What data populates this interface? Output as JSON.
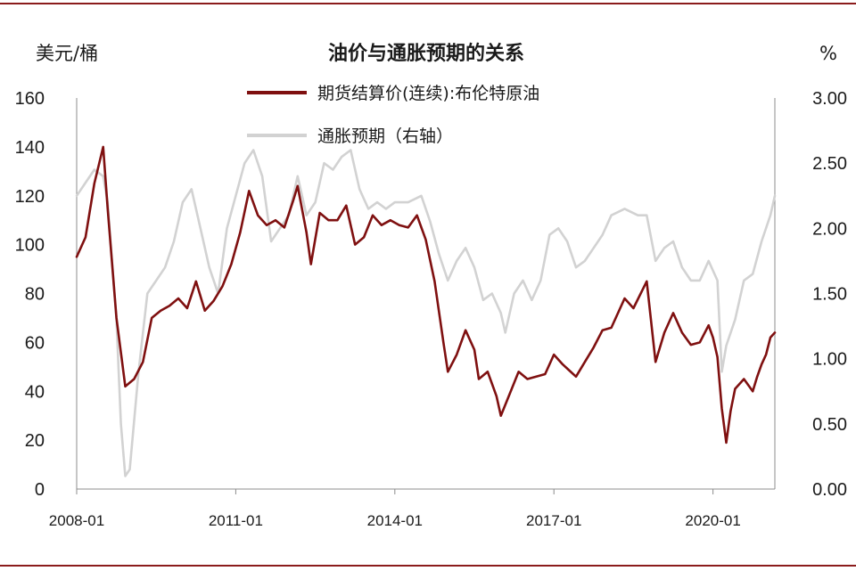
{
  "chart_data": {
    "type": "line",
    "title": "油价与通胀预期的关系",
    "ylabel_left": "美元/桶",
    "ylabel_right": "%",
    "y_left": {
      "min": 0,
      "max": 160,
      "ticks": [
        "0",
        "20",
        "40",
        "60",
        "80",
        "100",
        "120",
        "140",
        "160"
      ]
    },
    "y_right": {
      "min": 0,
      "max": 3,
      "ticks": [
        "0.00",
        "0.50",
        "1.00",
        "1.50",
        "2.00",
        "2.50",
        "3.00"
      ]
    },
    "x_ticks": [
      "2008-01",
      "2011-01",
      "2014-01",
      "2017-01",
      "2020-01"
    ],
    "x_range": [
      "2008-01",
      "2021-03"
    ],
    "legend_position": "top-center",
    "series": [
      {
        "name": "期货结算价(连续):布伦特原油",
        "axis": "left",
        "color": "#7f1010",
        "points": [
          [
            "2008-01",
            95
          ],
          [
            "2008-03",
            103
          ],
          [
            "2008-05",
            125
          ],
          [
            "2008-07",
            140
          ],
          [
            "2008-08",
            115
          ],
          [
            "2008-10",
            70
          ],
          [
            "2008-12",
            42
          ],
          [
            "2009-02",
            45
          ],
          [
            "2009-04",
            52
          ],
          [
            "2009-06",
            70
          ],
          [
            "2009-08",
            73
          ],
          [
            "2009-10",
            75
          ],
          [
            "2009-12",
            78
          ],
          [
            "2010-02",
            74
          ],
          [
            "2010-04",
            85
          ],
          [
            "2010-06",
            73
          ],
          [
            "2010-08",
            77
          ],
          [
            "2010-10",
            83
          ],
          [
            "2010-12",
            92
          ],
          [
            "2011-02",
            105
          ],
          [
            "2011-04",
            122
          ],
          [
            "2011-06",
            112
          ],
          [
            "2011-08",
            108
          ],
          [
            "2011-10",
            110
          ],
          [
            "2011-12",
            107
          ],
          [
            "2012-02",
            118
          ],
          [
            "2012-03",
            124
          ],
          [
            "2012-05",
            105
          ],
          [
            "2012-06",
            92
          ],
          [
            "2012-08",
            113
          ],
          [
            "2012-10",
            110
          ],
          [
            "2012-12",
            110
          ],
          [
            "2013-02",
            116
          ],
          [
            "2013-04",
            100
          ],
          [
            "2013-06",
            103
          ],
          [
            "2013-08",
            112
          ],
          [
            "2013-10",
            108
          ],
          [
            "2013-12",
            110
          ],
          [
            "2014-02",
            108
          ],
          [
            "2014-04",
            107
          ],
          [
            "2014-06",
            112
          ],
          [
            "2014-08",
            102
          ],
          [
            "2014-10",
            85
          ],
          [
            "2014-12",
            60
          ],
          [
            "2015-01",
            48
          ],
          [
            "2015-03",
            55
          ],
          [
            "2015-05",
            65
          ],
          [
            "2015-07",
            57
          ],
          [
            "2015-08",
            45
          ],
          [
            "2015-10",
            48
          ],
          [
            "2015-12",
            38
          ],
          [
            "2016-01",
            30
          ],
          [
            "2016-03",
            39
          ],
          [
            "2016-05",
            48
          ],
          [
            "2016-07",
            45
          ],
          [
            "2016-09",
            46
          ],
          [
            "2016-11",
            47
          ],
          [
            "2017-01",
            55
          ],
          [
            "2017-03",
            51
          ],
          [
            "2017-06",
            46
          ],
          [
            "2017-08",
            52
          ],
          [
            "2017-10",
            58
          ],
          [
            "2017-12",
            65
          ],
          [
            "2018-02",
            66
          ],
          [
            "2018-05",
            78
          ],
          [
            "2018-07",
            74
          ],
          [
            "2018-10",
            85
          ],
          [
            "2018-12",
            52
          ],
          [
            "2019-02",
            64
          ],
          [
            "2019-04",
            72
          ],
          [
            "2019-06",
            64
          ],
          [
            "2019-08",
            59
          ],
          [
            "2019-10",
            60
          ],
          [
            "2019-12",
            67
          ],
          [
            "2020-01",
            62
          ],
          [
            "2020-02",
            54
          ],
          [
            "2020-03",
            33
          ],
          [
            "2020-04",
            19
          ],
          [
            "2020-05",
            32
          ],
          [
            "2020-06",
            41
          ],
          [
            "2020-08",
            45
          ],
          [
            "2020-10",
            40
          ],
          [
            "2020-11",
            46
          ],
          [
            "2020-12",
            51
          ],
          [
            "2021-01",
            55
          ],
          [
            "2021-02",
            62
          ],
          [
            "2021-03",
            64
          ]
        ]
      },
      {
        "name": "通胀预期（右轴）",
        "axis": "right",
        "color": "#d2d2d2",
        "points": [
          [
            "2008-01",
            2.25
          ],
          [
            "2008-03",
            2.35
          ],
          [
            "2008-05",
            2.45
          ],
          [
            "2008-07",
            2.4
          ],
          [
            "2008-08",
            2.2
          ],
          [
            "2008-10",
            1.3
          ],
          [
            "2008-11",
            0.5
          ],
          [
            "2008-12",
            0.1
          ],
          [
            "2009-01",
            0.15
          ],
          [
            "2009-03",
            0.9
          ],
          [
            "2009-05",
            1.5
          ],
          [
            "2009-07",
            1.6
          ],
          [
            "2009-09",
            1.7
          ],
          [
            "2009-11",
            1.9
          ],
          [
            "2010-01",
            2.2
          ],
          [
            "2010-03",
            2.3
          ],
          [
            "2010-05",
            2.0
          ],
          [
            "2010-07",
            1.7
          ],
          [
            "2010-09",
            1.5
          ],
          [
            "2010-11",
            2.0
          ],
          [
            "2011-01",
            2.25
          ],
          [
            "2011-03",
            2.5
          ],
          [
            "2011-05",
            2.6
          ],
          [
            "2011-07",
            2.4
          ],
          [
            "2011-09",
            1.9
          ],
          [
            "2011-11",
            2.0
          ],
          [
            "2012-01",
            2.1
          ],
          [
            "2012-03",
            2.4
          ],
          [
            "2012-05",
            2.1
          ],
          [
            "2012-07",
            2.2
          ],
          [
            "2012-09",
            2.5
          ],
          [
            "2012-11",
            2.45
          ],
          [
            "2013-01",
            2.55
          ],
          [
            "2013-03",
            2.6
          ],
          [
            "2013-05",
            2.3
          ],
          [
            "2013-07",
            2.15
          ],
          [
            "2013-09",
            2.2
          ],
          [
            "2013-11",
            2.15
          ],
          [
            "2014-01",
            2.2
          ],
          [
            "2014-04",
            2.2
          ],
          [
            "2014-07",
            2.25
          ],
          [
            "2014-09",
            2.05
          ],
          [
            "2014-11",
            1.8
          ],
          [
            "2015-01",
            1.6
          ],
          [
            "2015-03",
            1.75
          ],
          [
            "2015-05",
            1.85
          ],
          [
            "2015-07",
            1.7
          ],
          [
            "2015-09",
            1.45
          ],
          [
            "2015-11",
            1.5
          ],
          [
            "2016-01",
            1.35
          ],
          [
            "2016-02",
            1.2
          ],
          [
            "2016-04",
            1.5
          ],
          [
            "2016-06",
            1.6
          ],
          [
            "2016-08",
            1.45
          ],
          [
            "2016-10",
            1.6
          ],
          [
            "2016-12",
            1.95
          ],
          [
            "2017-02",
            2.0
          ],
          [
            "2017-04",
            1.9
          ],
          [
            "2017-06",
            1.7
          ],
          [
            "2017-08",
            1.75
          ],
          [
            "2017-10",
            1.85
          ],
          [
            "2017-12",
            1.95
          ],
          [
            "2018-02",
            2.1
          ],
          [
            "2018-05",
            2.15
          ],
          [
            "2018-08",
            2.1
          ],
          [
            "2018-10",
            2.1
          ],
          [
            "2018-12",
            1.75
          ],
          [
            "2019-02",
            1.85
          ],
          [
            "2019-04",
            1.9
          ],
          [
            "2019-06",
            1.7
          ],
          [
            "2019-08",
            1.6
          ],
          [
            "2019-10",
            1.6
          ],
          [
            "2019-12",
            1.75
          ],
          [
            "2020-02",
            1.6
          ],
          [
            "2020-03",
            0.9
          ],
          [
            "2020-04",
            1.1
          ],
          [
            "2020-06",
            1.3
          ],
          [
            "2020-08",
            1.6
          ],
          [
            "2020-10",
            1.65
          ],
          [
            "2020-12",
            1.9
          ],
          [
            "2021-02",
            2.1
          ],
          [
            "2021-03",
            2.25
          ]
        ]
      }
    ]
  }
}
